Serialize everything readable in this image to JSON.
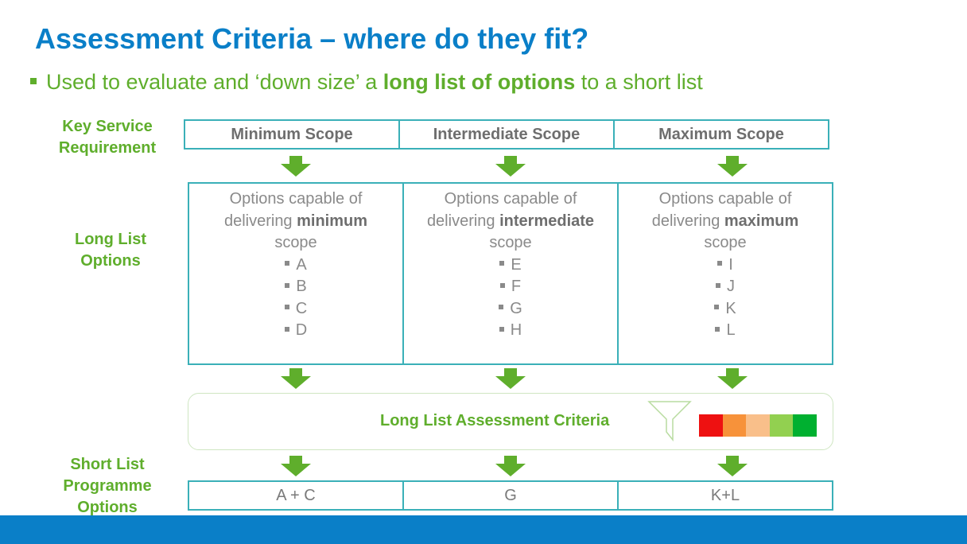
{
  "title": "Assessment Criteria – where do they fit?",
  "bullet": {
    "pre": "Used to evaluate and ‘down size’ a ",
    "bold": "long list of options",
    "post": " to a short list"
  },
  "row_labels": {
    "key_service": [
      "Key Service",
      "Requirement"
    ],
    "long_list": [
      "Long List",
      "Options"
    ],
    "short_list": [
      "Short List",
      "Programme",
      "Options"
    ]
  },
  "scopes": [
    "Minimum Scope",
    "Intermediate Scope",
    "Maximum Scope"
  ],
  "options": [
    {
      "line1": "Options capable of",
      "line2_pre": "delivering ",
      "line2_bold": "minimum",
      "line3": "scope",
      "items": [
        "A",
        "B",
        "C",
        "D"
      ]
    },
    {
      "line1": "Options capable of",
      "line2_pre": "delivering ",
      "line2_bold": "intermediate",
      "line3": "scope",
      "items": [
        "E",
        "F",
        "G",
        "H"
      ]
    },
    {
      "line1": "Options capable of",
      "line2_pre": "delivering ",
      "line2_bold": "maximum",
      "line3": "scope",
      "items": [
        "I",
        "J",
        "K",
        "L"
      ]
    }
  ],
  "criteria_label": "Long List Assessment Criteria",
  "rag_colors": [
    "#ee1111",
    "#f7923a",
    "#f9bf8a",
    "#92d050",
    "#00b030"
  ],
  "short_list": [
    "A + C",
    "G",
    "K+L"
  ],
  "colors": {
    "title_blue": "#0a7fc8",
    "label_green": "#5fae2c",
    "arrow_green": "#5fae2c",
    "cell_border": "#3ab0b8"
  },
  "icons": {
    "arrow": "down-arrow-icon",
    "funnel": "funnel-icon"
  }
}
